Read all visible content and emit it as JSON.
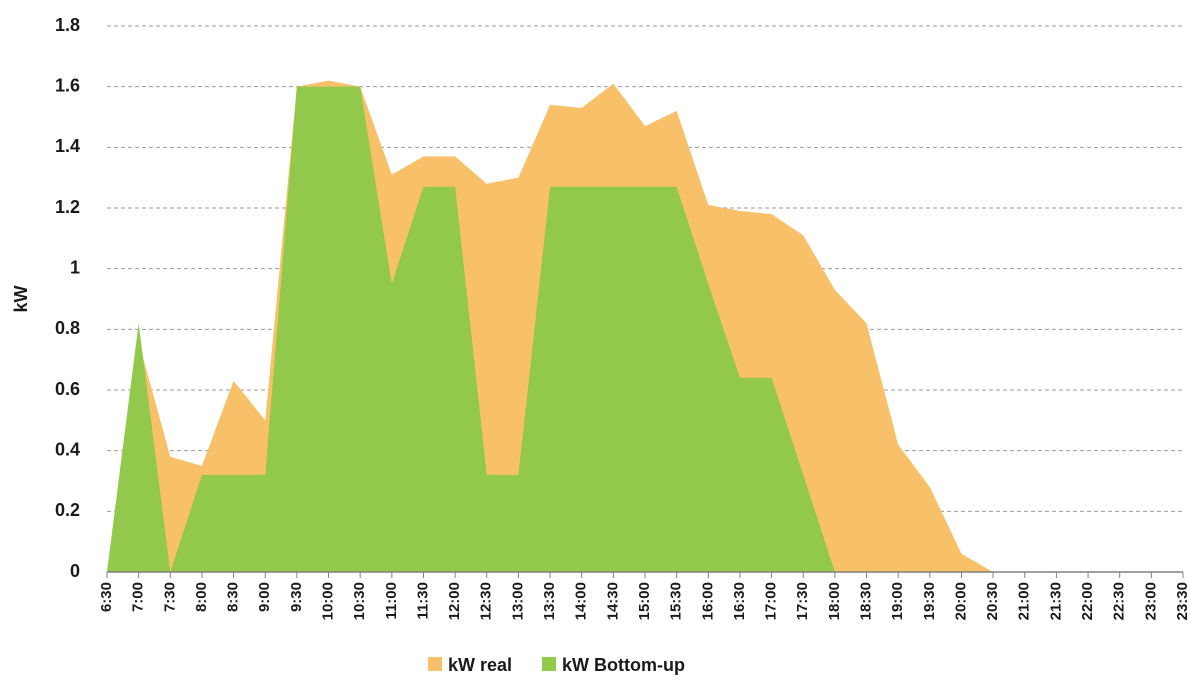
{
  "chart_data": {
    "type": "area",
    "ylabel": "kW",
    "categories": [
      "6:30",
      "7:00",
      "7:30",
      "8:00",
      "8:30",
      "9:00",
      "9:30",
      "10:00",
      "10:30",
      "11:00",
      "11:30",
      "12:00",
      "12:30",
      "13:00",
      "13:30",
      "14:00",
      "14:30",
      "15:00",
      "15:30",
      "16:00",
      "16:30",
      "17:00",
      "17:30",
      "18:00",
      "18:30",
      "19:00",
      "19:30",
      "20:00",
      "20:30",
      "21:00",
      "21:30",
      "22:00",
      "22:30",
      "23:00",
      "23:30"
    ],
    "series": [
      {
        "name": "kW real",
        "color": "#f9c06a",
        "values": [
          0,
          0.76,
          0.38,
          0.35,
          0.63,
          0.5,
          1.6,
          1.62,
          1.6,
          1.31,
          1.37,
          1.37,
          1.28,
          1.3,
          1.54,
          1.53,
          1.61,
          1.47,
          1.52,
          1.21,
          1.19,
          1.18,
          1.11,
          0.93,
          0.82,
          0.42,
          0.28,
          0.06,
          0,
          0,
          0,
          0,
          0,
          0,
          0
        ]
      },
      {
        "name": "kW Bottom-up",
        "color": "#92c84c",
        "values": [
          0,
          0.82,
          0,
          0.32,
          0.32,
          0.32,
          1.6,
          1.6,
          1.6,
          0.95,
          1.27,
          1.27,
          0.32,
          0.32,
          1.27,
          1.27,
          1.27,
          1.27,
          1.27,
          0.95,
          0.64,
          0.64,
          0.32,
          0,
          0,
          0,
          0,
          0,
          0,
          0,
          0,
          0,
          0,
          0,
          0
        ]
      }
    ],
    "ylim": [
      0,
      1.8
    ],
    "yticks": [
      0,
      0.2,
      0.4,
      0.6,
      0.8,
      1,
      1.2,
      1.4,
      1.6,
      1.8
    ],
    "grid": true,
    "legend": "bottom"
  }
}
